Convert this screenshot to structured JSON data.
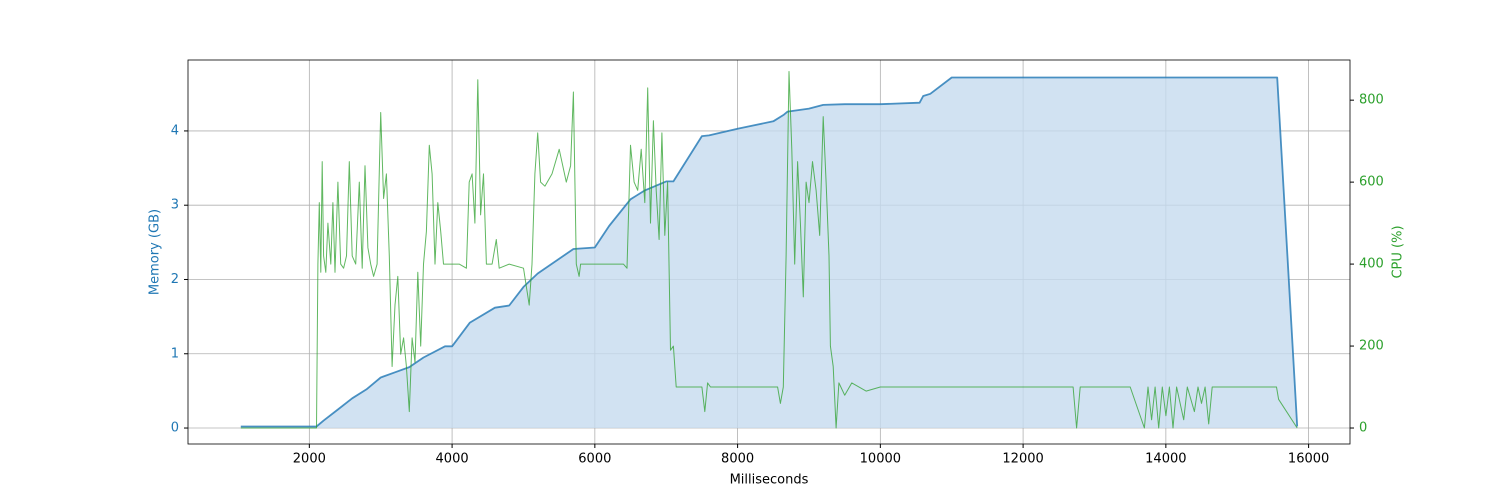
{
  "chart_data": {
    "type": "line",
    "xlabel": "Milliseconds",
    "ylabel": "Memory (GB)",
    "y2label": "CPU (%)",
    "xlim": [
      300,
      16580
    ],
    "ylim": [
      -0.215,
      4.955
    ],
    "y2lim": [
      -39,
      898
    ],
    "xticks": [
      2000,
      4000,
      6000,
      8000,
      10000,
      12000,
      14000,
      16000
    ],
    "yticks": [
      0,
      1,
      2,
      3,
      4
    ],
    "y2ticks": [
      0,
      200,
      400,
      600,
      800
    ],
    "grid": true,
    "series": [
      {
        "name": "Memory (GB)",
        "color": "#1f77b4",
        "fill": "#c6dbef",
        "axis": "y",
        "x": [
          1040,
          2100,
          2200,
          2400,
          2600,
          2800,
          3000,
          3200,
          3400,
          3600,
          3900,
          4000,
          4250,
          4600,
          4800,
          5000,
          5200,
          5700,
          6000,
          6200,
          6500,
          6700,
          7000,
          7100,
          7500,
          7600,
          8000,
          8500,
          8650,
          8700,
          9000,
          9200,
          9500,
          10000,
          10550,
          10600,
          10700,
          11000,
          15560,
          15840
        ],
        "values": [
          0.02,
          0.02,
          0.1,
          0.25,
          0.4,
          0.52,
          0.68,
          0.75,
          0.82,
          0.95,
          1.1,
          1.1,
          1.42,
          1.62,
          1.65,
          1.9,
          2.08,
          2.41,
          2.43,
          2.72,
          3.08,
          3.2,
          3.32,
          3.32,
          3.93,
          3.94,
          4.03,
          4.13,
          4.22,
          4.26,
          4.3,
          4.35,
          4.36,
          4.36,
          4.38,
          4.47,
          4.5,
          4.72,
          4.72,
          0.02
        ]
      },
      {
        "name": "CPU (%)",
        "color": "#2ca02c",
        "axis": "y2",
        "x": [
          1040,
          2100,
          2120,
          2140,
          2160,
          2180,
          2200,
          2230,
          2260,
          2300,
          2330,
          2360,
          2400,
          2440,
          2480,
          2520,
          2560,
          2600,
          2650,
          2700,
          2740,
          2780,
          2820,
          2860,
          2900,
          2950,
          3000,
          3040,
          3080,
          3120,
          3160,
          3200,
          3240,
          3280,
          3320,
          3360,
          3400,
          3440,
          3480,
          3520,
          3560,
          3600,
          3640,
          3680,
          3720,
          3760,
          3800,
          3840,
          3880,
          3950,
          4100,
          4200,
          4240,
          4280,
          4320,
          4360,
          4400,
          4440,
          4480,
          4520,
          4560,
          4620,
          4660,
          4800,
          5000,
          5080,
          5120,
          5160,
          5200,
          5240,
          5300,
          5400,
          5500,
          5600,
          5660,
          5700,
          5740,
          5780,
          5800,
          6000,
          6400,
          6450,
          6500,
          6550,
          6600,
          6650,
          6700,
          6740,
          6780,
          6820,
          6860,
          6900,
          6940,
          6980,
          7020,
          7060,
          7100,
          7140,
          7500,
          7540,
          7580,
          7620,
          8400,
          8560,
          8600,
          8640,
          8680,
          8720,
          8760,
          8800,
          8840,
          8880,
          8920,
          8960,
          9000,
          9050,
          9100,
          9150,
          9200,
          9240,
          9280,
          9300,
          9340,
          9380,
          9420,
          9500,
          9600,
          9800,
          10000,
          12700,
          12750,
          12800,
          13500,
          13600,
          13700,
          13750,
          13800,
          13850,
          13900,
          13950,
          14000,
          14050,
          14100,
          14150,
          14250,
          14300,
          14400,
          14450,
          14500,
          14550,
          14600,
          14650,
          15550,
          15580,
          15840
        ],
        "values": [
          0,
          0,
          400,
          550,
          380,
          650,
          420,
          380,
          500,
          400,
          550,
          380,
          600,
          400,
          390,
          420,
          650,
          420,
          400,
          600,
          390,
          640,
          440,
          400,
          370,
          400,
          770,
          560,
          620,
          420,
          150,
          300,
          370,
          180,
          220,
          150,
          40,
          220,
          160,
          380,
          200,
          400,
          480,
          690,
          620,
          400,
          550,
          480,
          400,
          400,
          400,
          390,
          600,
          620,
          500,
          850,
          520,
          620,
          400,
          400,
          400,
          460,
          390,
          400,
          390,
          300,
          400,
          620,
          720,
          600,
          590,
          620,
          680,
          600,
          640,
          820,
          400,
          370,
          400,
          400,
          400,
          390,
          690,
          600,
          580,
          680,
          550,
          830,
          500,
          750,
          580,
          460,
          720,
          470,
          600,
          190,
          200,
          100,
          100,
          40,
          110,
          100,
          100,
          100,
          60,
          100,
          420,
          870,
          680,
          400,
          650,
          500,
          320,
          600,
          550,
          650,
          580,
          470,
          760,
          600,
          420,
          200,
          150,
          0,
          110,
          80,
          110,
          90,
          100,
          100,
          0,
          100,
          100,
          50,
          0,
          100,
          20,
          100,
          0,
          100,
          30,
          100,
          0,
          100,
          20,
          100,
          40,
          100,
          60,
          100,
          10,
          100,
          100,
          70,
          0
        ]
      }
    ]
  }
}
